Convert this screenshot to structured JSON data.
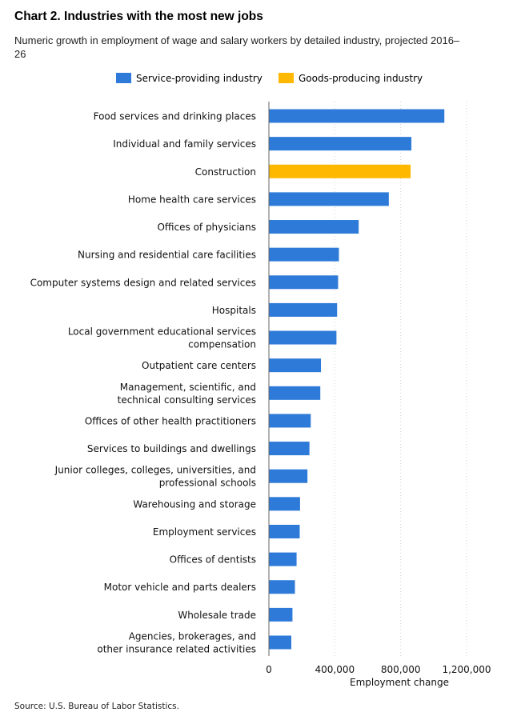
{
  "header": {
    "title": "Chart 2. Industries with the most new jobs",
    "subtitle": "Numeric growth in employment of wage and salary workers by detailed industry, projected 2016–26"
  },
  "legend": {
    "service": {
      "label": "Service-providing industry",
      "color": "#2e7ad9"
    },
    "goods": {
      "label": "Goods-producing industry",
      "color": "#ffb800"
    }
  },
  "source": "Source: U.S. Bureau of Labor Statistics.",
  "chart_data": {
    "type": "bar",
    "orientation": "horizontal",
    "title": "Chart 2. Industries with the most new jobs",
    "xlabel": "Employment change",
    "ylabel": "",
    "xlim": [
      0,
      1200000
    ],
    "xticks": [
      0,
      400000,
      800000,
      1200000
    ],
    "xtick_labels": [
      "0",
      "400,000",
      "800,000",
      "1,200,000"
    ],
    "grid": "vertical dotted",
    "legend_position": "top",
    "categories": [
      [
        "Food services and drinking places"
      ],
      [
        "Individual and family services"
      ],
      [
        "Construction"
      ],
      [
        "Home health care services"
      ],
      [
        "Offices of physicians"
      ],
      [
        "Nursing and residential care facilities"
      ],
      [
        "Computer systems design and related services"
      ],
      [
        "Hospitals"
      ],
      [
        "Local government educational services",
        "compensation"
      ],
      [
        "Outpatient care centers"
      ],
      [
        "Management, scientific, and",
        "technical consulting services"
      ],
      [
        "Offices of other health practitioners"
      ],
      [
        "Services to buildings and dwellings"
      ],
      [
        "Junior colleges, colleges, universities, and",
        "professional schools"
      ],
      [
        "Warehousing and storage"
      ],
      [
        "Employment services"
      ],
      [
        "Offices of dentists"
      ],
      [
        "Motor vehicle and parts dealers"
      ],
      [
        "Wholesale trade"
      ],
      [
        "Agencies, brokerages, and",
        "other insurance related activities"
      ]
    ],
    "values": [
      1065000,
      865000,
      860000,
      728000,
      545000,
      425000,
      420000,
      414000,
      410000,
      316000,
      312000,
      254000,
      246000,
      234000,
      189000,
      187000,
      168000,
      158000,
      143000,
      136000
    ],
    "groups": [
      "service",
      "service",
      "goods",
      "service",
      "service",
      "service",
      "service",
      "service",
      "service",
      "service",
      "service",
      "service",
      "service",
      "service",
      "service",
      "service",
      "service",
      "service",
      "service",
      "service"
    ]
  }
}
